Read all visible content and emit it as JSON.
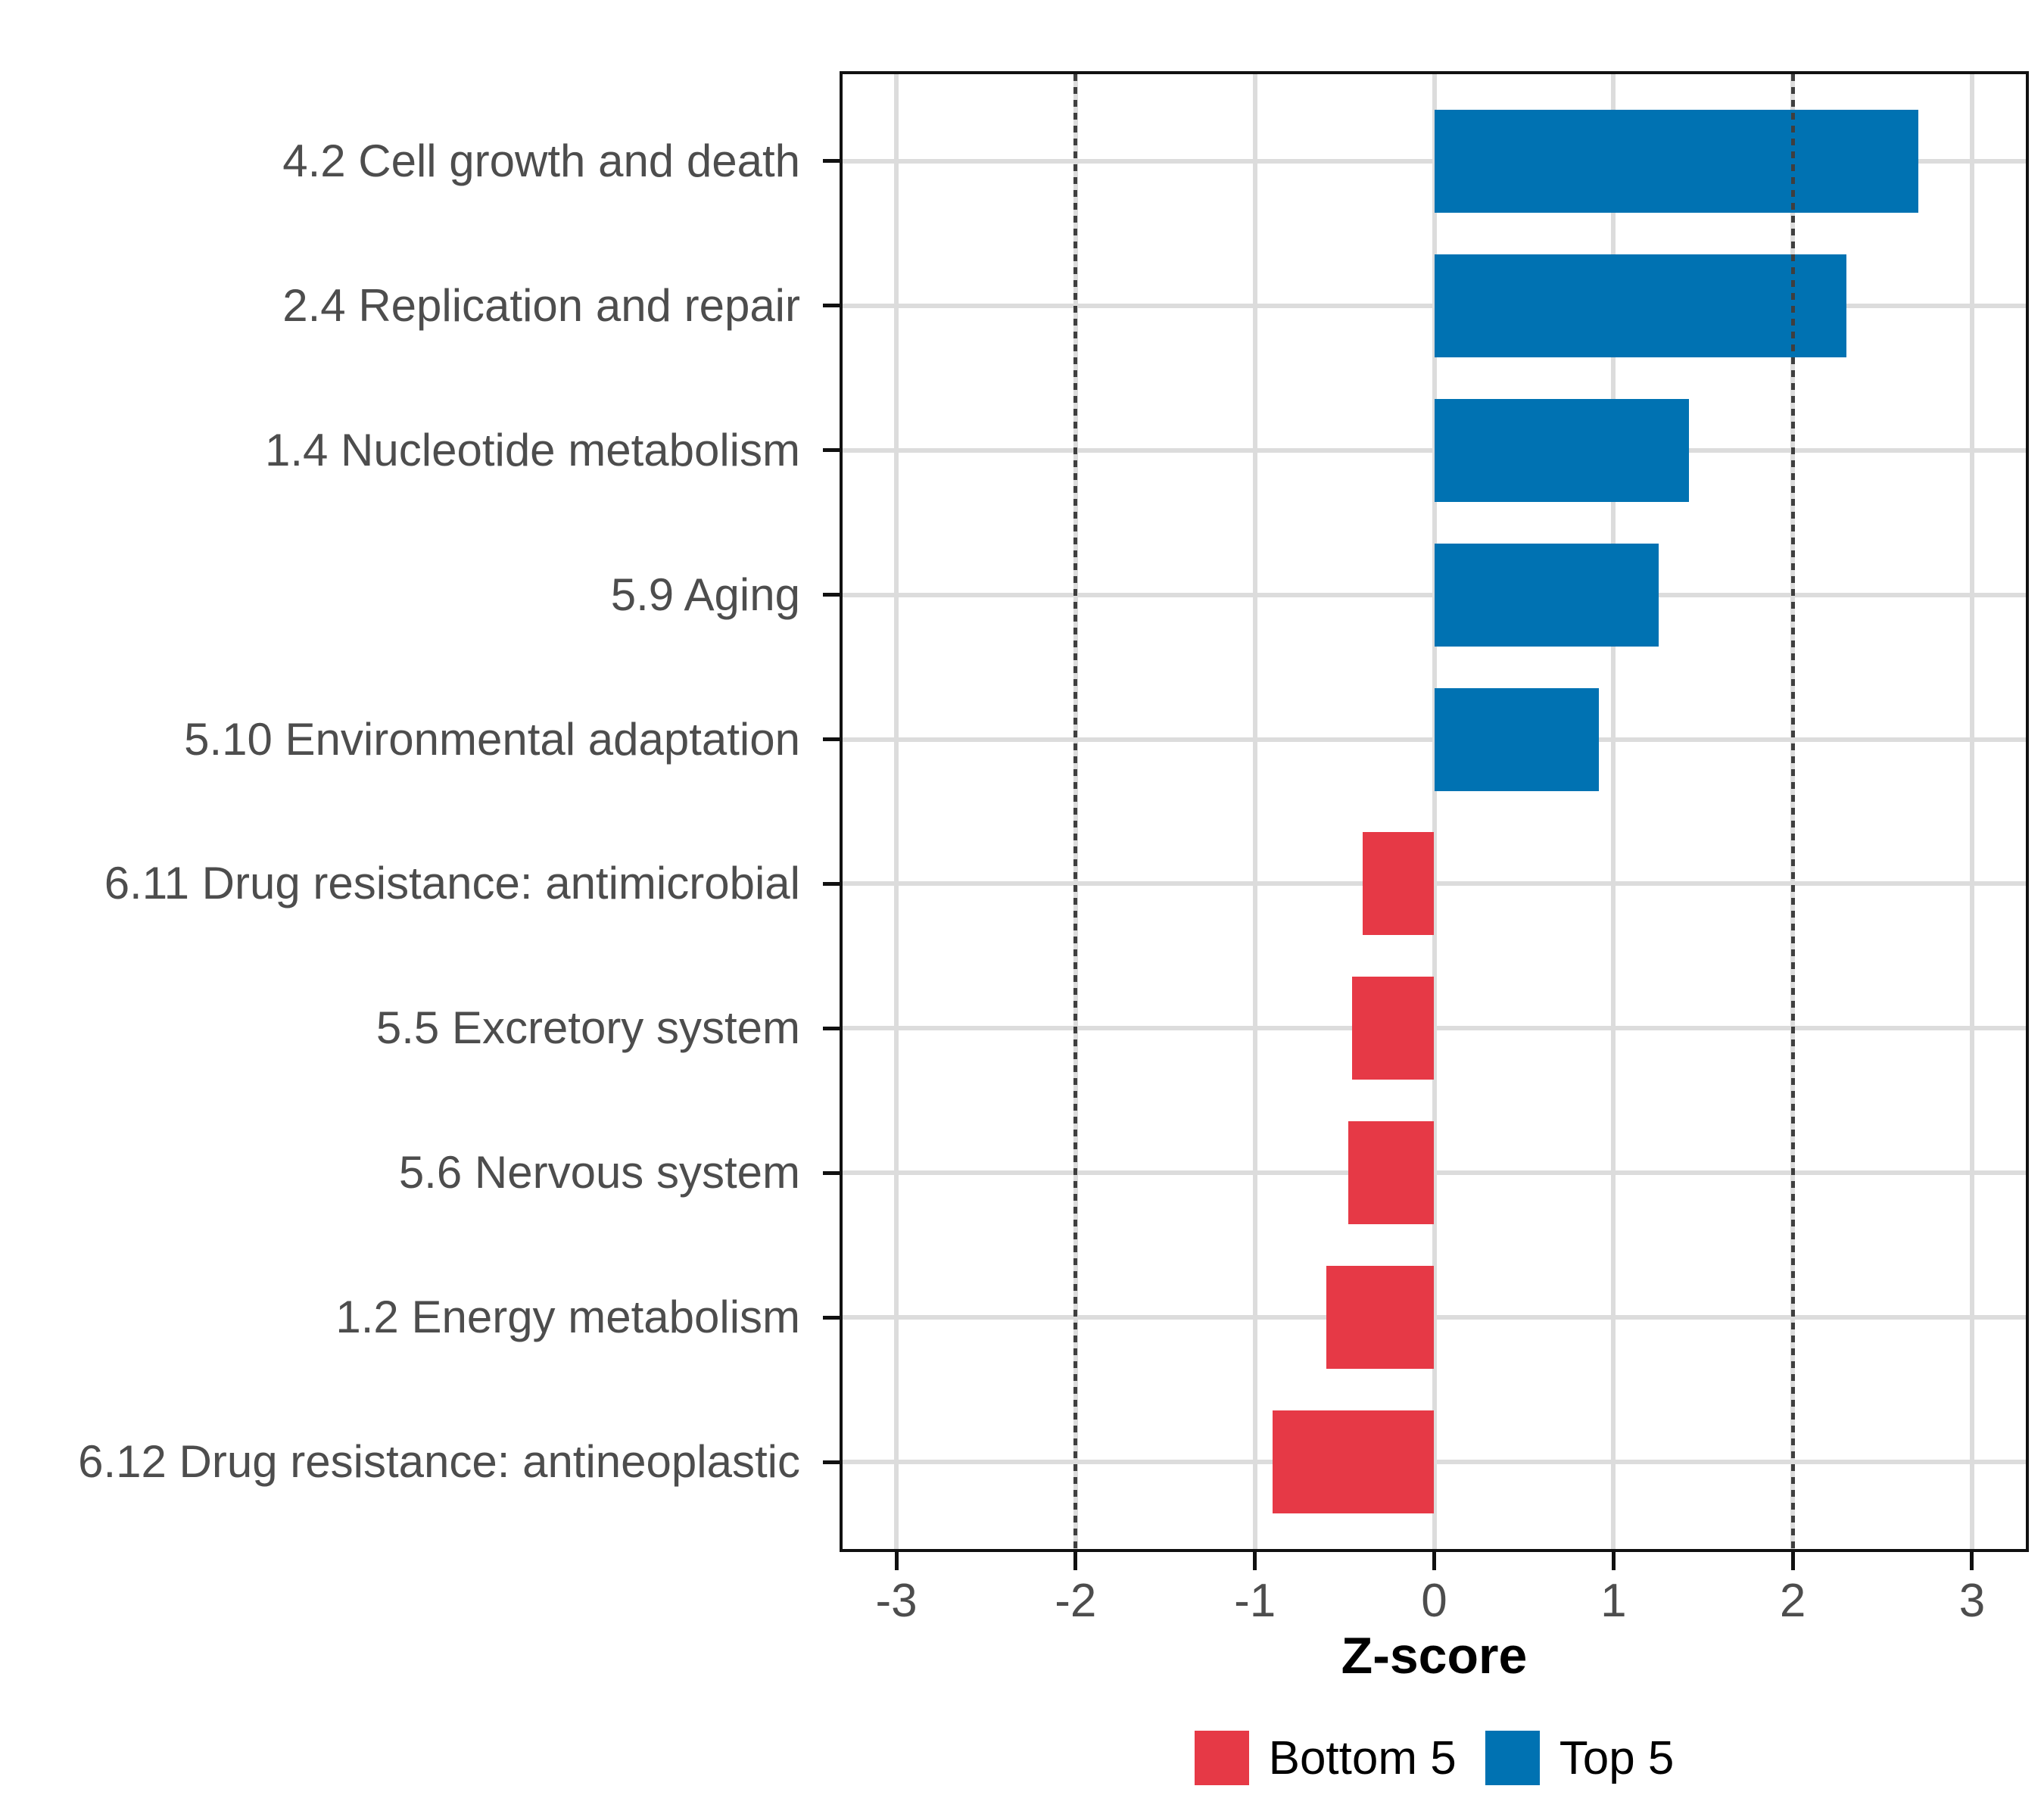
{
  "chart_data": {
    "type": "bar",
    "orientation": "horizontal",
    "title": "",
    "xlabel": "Z-score",
    "ylabel": "",
    "categories": [
      "4.2 Cell growth and death",
      "2.4 Replication and repair",
      "1.4 Nucleotide metabolism",
      "5.9 Aging",
      "5.10 Environmental adaptation",
      "6.11 Drug resistance: antimicrobial",
      "5.5 Excretory system",
      "5.6 Nervous system",
      "1.2 Energy metabolism",
      "6.12 Drug resistance: antineoplastic"
    ],
    "values": [
      2.7,
      2.3,
      1.42,
      1.25,
      0.92,
      -0.4,
      -0.46,
      -0.48,
      -0.6,
      -0.9
    ],
    "groups": [
      "Top 5",
      "Top 5",
      "Top 5",
      "Top 5",
      "Top 5",
      "Bottom 5",
      "Bottom 5",
      "Bottom 5",
      "Bottom 5",
      "Bottom 5"
    ],
    "colors": {
      "Top 5": "#0072B2",
      "Bottom 5": "#E63946"
    },
    "xlim": [
      -3.3,
      3.3
    ],
    "xticks": [
      -3,
      -2,
      -1,
      0,
      1,
      2,
      3
    ],
    "reference_lines": [
      -2,
      2
    ],
    "grid": true,
    "grid_color": "#dcdcdc",
    "reference_line_color": "#3f3f3f",
    "bar_fraction": 0.71,
    "legend_position": "bottom",
    "axis_text_color": "#4d4d4d"
  },
  "legend": {
    "items": [
      {
        "label": "Bottom 5",
        "color": "#E63946"
      },
      {
        "label": "Top 5",
        "color": "#0072B2"
      }
    ]
  }
}
